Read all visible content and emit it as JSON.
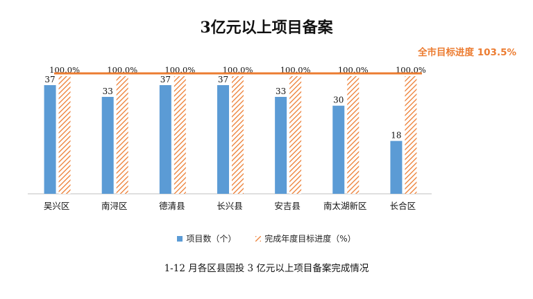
{
  "chart_data": {
    "type": "bar",
    "title": "3亿元以上项目备案",
    "categories": [
      "吴兴区",
      "南浔区",
      "德清县",
      "长兴县",
      "安吉县",
      "南太湖新区",
      "长合区"
    ],
    "series": [
      {
        "name": "项目数（个）",
        "values": [
          37,
          33,
          37,
          37,
          33,
          30,
          18
        ],
        "value_labels": [
          "37",
          "33",
          "37",
          "37",
          "33",
          "30",
          "18"
        ],
        "color": "#5b9bd5"
      },
      {
        "name": "完成年度目标进度（%）",
        "values": [
          100.0,
          100.0,
          100.0,
          100.0,
          100.0,
          100.0,
          100.0
        ],
        "value_labels": [
          "100.0%",
          "100.0%",
          "100.0%",
          "100.0%",
          "100.0%",
          "100.0%",
          "100.0%"
        ],
        "color": "#ec7c31",
        "pattern": "diagonal-hatch"
      }
    ],
    "reference_line": {
      "label": "全市目标进度 103.5%",
      "value": 103.5,
      "color": "#ec7c31"
    },
    "legend_position": "bottom",
    "grid": false
  },
  "caption": "1-12 月各区县固投 3 亿元以上项目备案完成情况"
}
